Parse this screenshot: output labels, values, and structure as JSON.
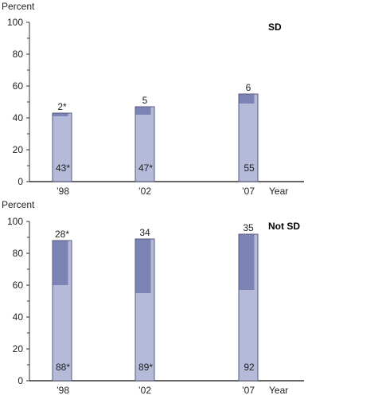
{
  "colors": {
    "bar_fill": "#b5bad9",
    "bar_stroke": "#555a80",
    "inner_fill": "#7b84b5",
    "axis": "#333333",
    "text": "#222222"
  },
  "chart_data": [
    {
      "type": "bar",
      "panel_label": "SD",
      "ylabel": "Percent",
      "xlabel": "Year",
      "ylim": [
        0,
        100
      ],
      "y_ticks": [
        "0",
        "20",
        "40",
        "60",
        "80",
        "100"
      ],
      "categories": [
        "’98",
        "’02",
        "’07"
      ],
      "x_values": [
        1998,
        2002,
        2007
      ],
      "series": [
        {
          "values": [
            43,
            47,
            55
          ],
          "labels": [
            "43*",
            "47*",
            "55"
          ]
        },
        {
          "values": [
            2,
            5,
            6
          ],
          "labels": [
            "2*",
            "5",
            "6"
          ]
        }
      ]
    },
    {
      "type": "bar",
      "panel_label": "Not SD",
      "ylabel": "Percent",
      "xlabel": "Year",
      "ylim": [
        0,
        100
      ],
      "y_ticks": [
        "0",
        "20",
        "40",
        "60",
        "80",
        "100"
      ],
      "categories": [
        "’98",
        "’02",
        "’07"
      ],
      "x_values": [
        1998,
        2002,
        2007
      ],
      "series": [
        {
          "values": [
            88,
            89,
            92
          ],
          "labels": [
            "88*",
            "89*",
            "92"
          ]
        },
        {
          "values": [
            28,
            34,
            35
          ],
          "labels": [
            "28*",
            "34",
            "35"
          ]
        }
      ]
    }
  ]
}
